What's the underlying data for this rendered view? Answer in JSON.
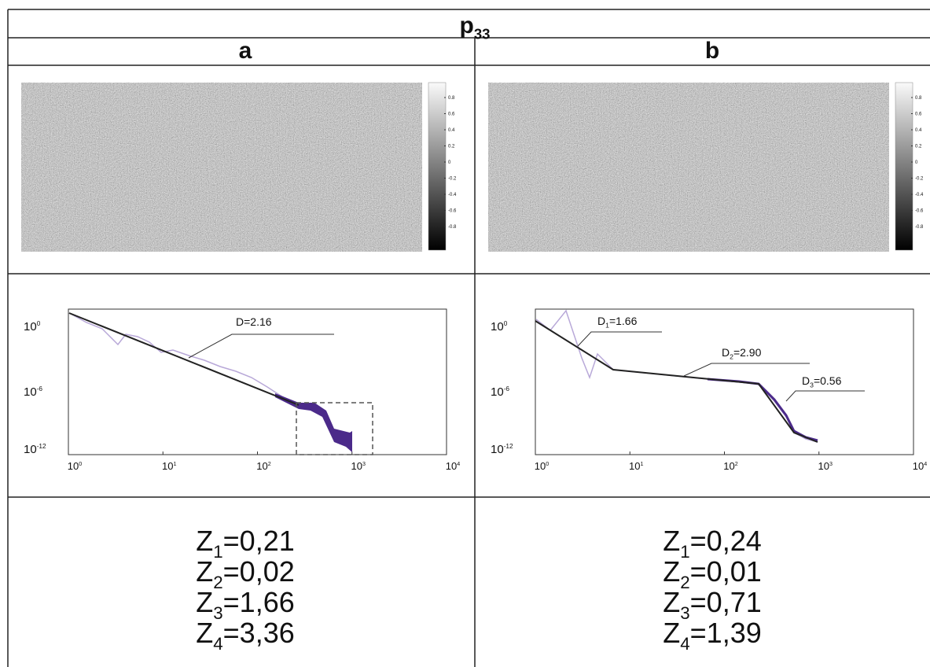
{
  "title": {
    "base": "p",
    "sub": "33"
  },
  "columns": [
    {
      "label": "a",
      "colorbar": [
        "0.8",
        "0.6",
        "0.4",
        "0.2",
        "0",
        "-0.2",
        "-0.4",
        "-0.6",
        "-0.8"
      ],
      "plot": {
        "yticks": [
          {
            "base": "10",
            "exp": "0"
          },
          {
            "base": "10",
            "exp": "-6"
          },
          {
            "base": "10",
            "exp": "-12"
          }
        ],
        "xticks": [
          {
            "base": "10",
            "exp": "0"
          },
          {
            "base": "10",
            "exp": "1"
          },
          {
            "base": "10",
            "exp": "2"
          },
          {
            "base": "10",
            "exp": "3"
          },
          {
            "base": "10",
            "exp": "4"
          }
        ],
        "annotations": [
          {
            "base": "D",
            "rest": "=2.16"
          }
        ]
      },
      "z": [
        {
          "base": "Z",
          "sub": "1",
          "rest": "=0,21"
        },
        {
          "base": "Z",
          "sub": "2",
          "rest": "=0,02"
        },
        {
          "base": "Z",
          "sub": "3",
          "rest": "=1,66"
        },
        {
          "base": "Z",
          "sub": "4",
          "rest": "=3,36"
        }
      ]
    },
    {
      "label": "b",
      "colorbar": [
        "0.8",
        "0.6",
        "0.4",
        "0.2",
        "0",
        "-0.2",
        "-0.4",
        "-0.6",
        "-0.8"
      ],
      "plot": {
        "yticks": [
          {
            "base": "10",
            "exp": "0"
          },
          {
            "base": "10",
            "exp": "-6"
          },
          {
            "base": "10",
            "exp": "-12"
          }
        ],
        "xticks": [
          {
            "base": "10",
            "exp": "0"
          },
          {
            "base": "10",
            "exp": "1"
          },
          {
            "base": "10",
            "exp": "2"
          },
          {
            "base": "10",
            "exp": "3"
          },
          {
            "base": "10",
            "exp": "4"
          }
        ],
        "annotations": [
          {
            "base": "D",
            "sub": "1",
            "rest": "=1.66"
          },
          {
            "base": "D",
            "sub": "2",
            "rest": "=2.90"
          },
          {
            "base": "D",
            "sub": "3",
            "rest": "=0.56"
          }
        ]
      },
      "z": [
        {
          "base": "Z",
          "sub": "1",
          "rest": "=0,24"
        },
        {
          "base": "Z",
          "sub": "2",
          "rest": "=0,01"
        },
        {
          "base": "Z",
          "sub": "3",
          "rest": "=0,71"
        },
        {
          "base": "Z",
          "sub": "4",
          "rest": "=1,39"
        }
      ]
    }
  ]
}
